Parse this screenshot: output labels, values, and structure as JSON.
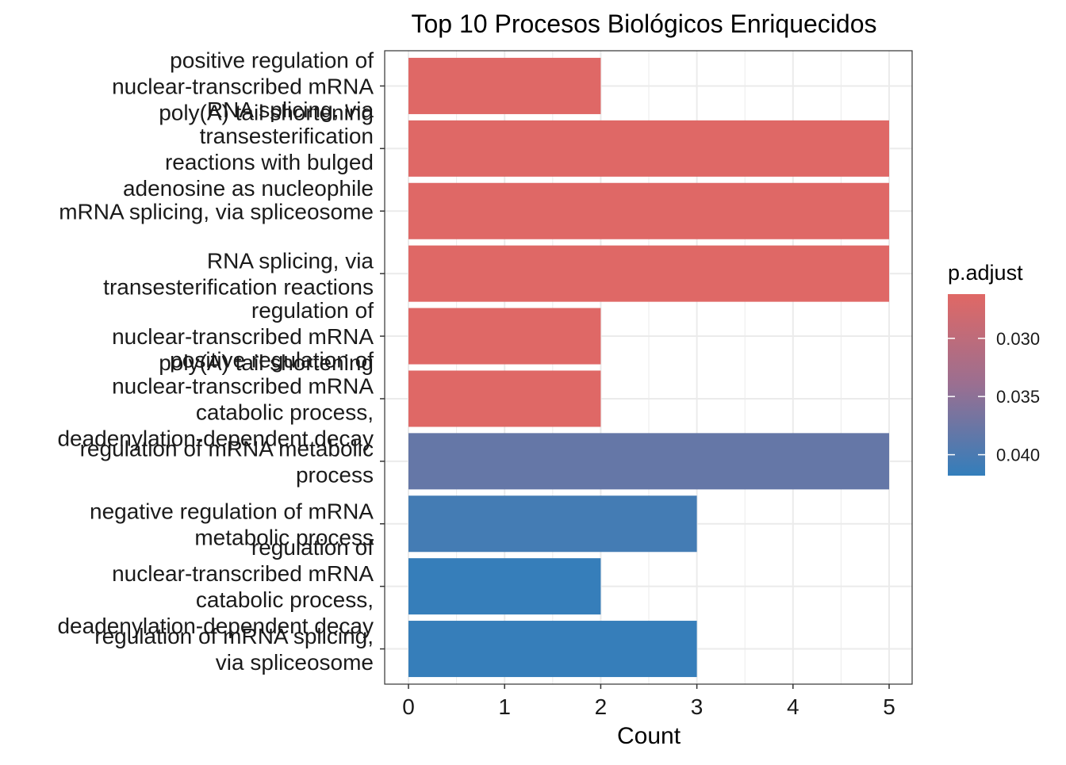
{
  "chart_data": {
    "type": "bar",
    "orientation": "horizontal",
    "title": "Top 10 Procesos Biológicos Enriquecidos",
    "xlabel": "Count",
    "ylabel": "",
    "xlim": [
      0,
      5
    ],
    "xticks": [
      "0",
      "1",
      "2",
      "3",
      "4",
      "5"
    ],
    "grid": true,
    "legend": {
      "title": "p.adjust",
      "placement": "right",
      "tick_labels": [
        "0.030",
        "0.035",
        "0.040"
      ],
      "tick_values": [
        0.03,
        0.035,
        0.04
      ],
      "range": [
        0.0262,
        0.0418
      ],
      "color_low_padjust": "#E06865",
      "color_mid": "#9A6F91",
      "color_high_padjust": "#337EBB"
    },
    "categories": [
      "positive regulation of\nnuclear-transcribed mRNA\npoly(A) tail shortening",
      "RNA splicing, via\ntransesterification\nreactions with bulged\nadenosine as nucleophile",
      "mRNA splicing, via spliceosome",
      "RNA splicing, via\ntransesterification reactions",
      "regulation of\nnuclear-transcribed mRNA\npoly(A) tail shortening",
      "positive regulation of\nnuclear-transcribed mRNA\ncatabolic process,\ndeadenylation-dependent decay",
      "regulation of mRNA metabolic\nprocess",
      "negative regulation of mRNA\nmetabolic process",
      "regulation of\nnuclear-transcribed mRNA\ncatabolic process,\ndeadenylation-dependent decay",
      "regulation of mRNA splicing,\nvia spliceosome"
    ],
    "values": [
      2,
      5,
      5,
      5,
      2,
      2,
      5,
      3,
      2,
      3
    ],
    "p_adjust": [
      0.0263,
      0.0263,
      0.0263,
      0.0263,
      0.0263,
      0.0263,
      0.038,
      0.0405,
      0.0416,
      0.0416
    ]
  }
}
